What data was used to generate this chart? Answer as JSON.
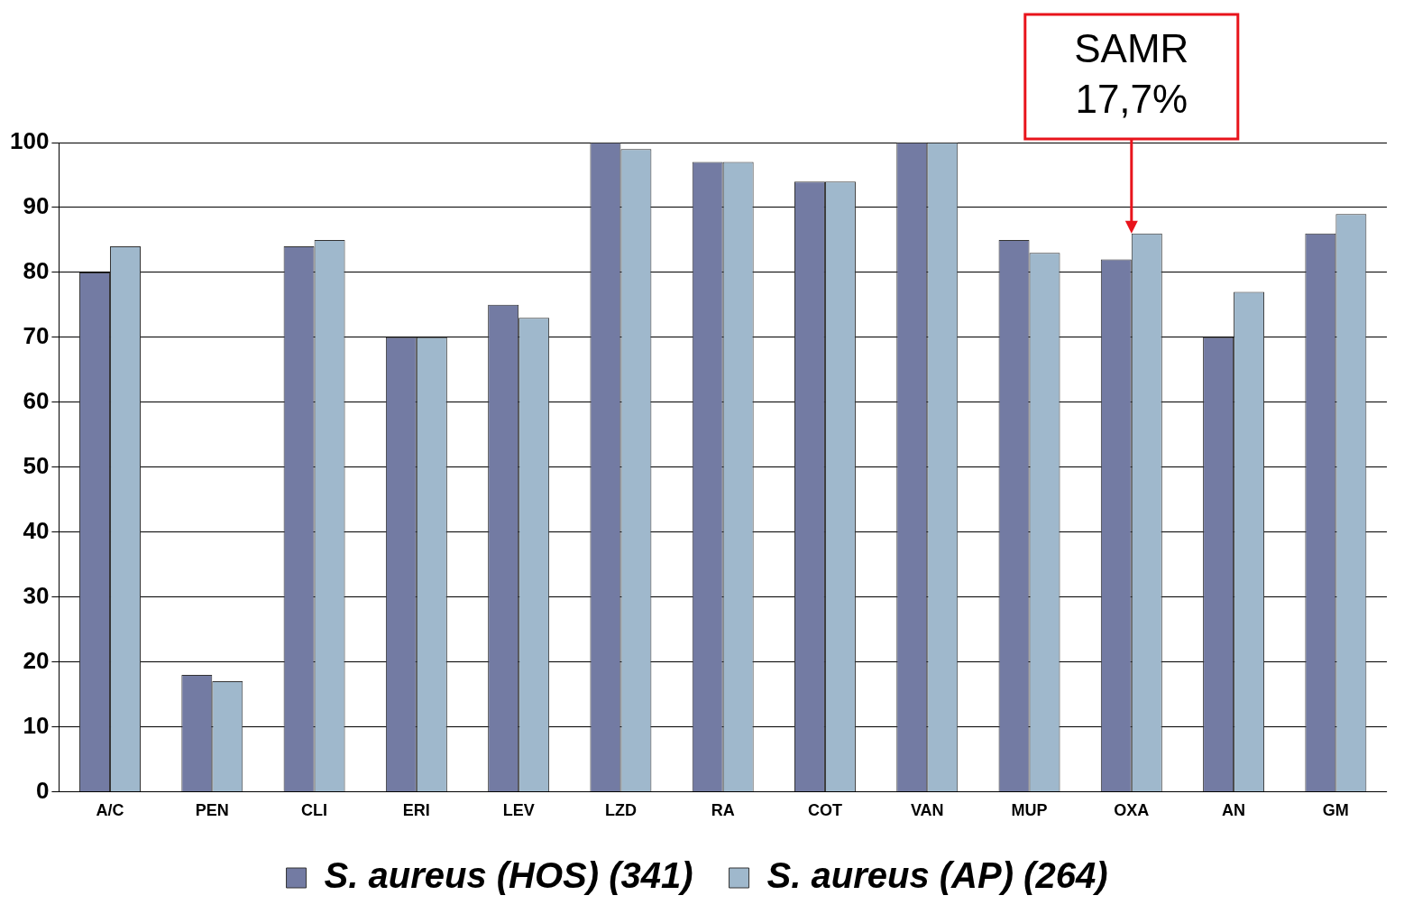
{
  "chart_data": {
    "type": "bar",
    "categories": [
      "A/C",
      "PEN",
      "CLI",
      "ERI",
      "LEV",
      "LZD",
      "RA",
      "COT",
      "VAN",
      "MUP",
      "OXA",
      "AN",
      "GM"
    ],
    "series": [
      {
        "name": "S. aureus (HOS) (341)",
        "color": "#737ba3",
        "values": [
          80,
          18,
          84,
          70,
          75,
          100,
          97,
          94,
          100,
          85,
          82,
          70,
          86
        ]
      },
      {
        "name": "S. aureus (AP) (264)",
        "color": "#9fb8cc",
        "values": [
          84,
          17,
          85,
          70,
          73,
          99,
          97,
          94,
          100,
          83,
          86,
          77,
          89
        ]
      }
    ],
    "ylim": [
      0,
      100
    ],
    "yticks": [
      0,
      10,
      20,
      30,
      40,
      50,
      60,
      70,
      80,
      90,
      100
    ],
    "grid": "y",
    "legend": "bottom",
    "annotations": [
      {
        "text": "SAMR\n17,7%",
        "x": "OXA",
        "y": 86
      }
    ]
  }
}
